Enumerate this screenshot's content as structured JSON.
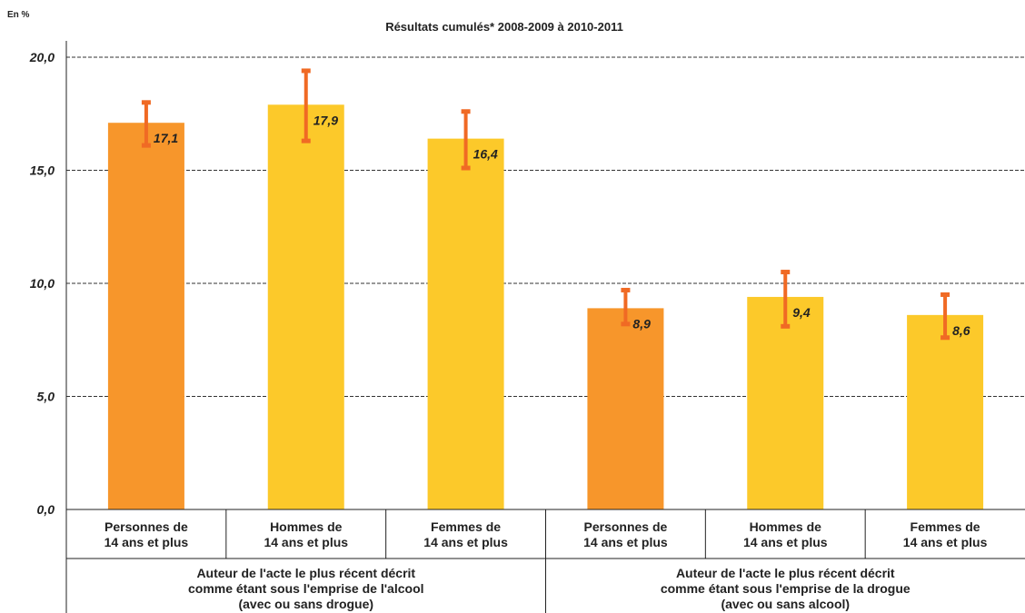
{
  "unit_label": "En %",
  "chart_data": {
    "type": "bar",
    "title": "Résultats cumulés* 2008-2009 à 2010-2011",
    "ylim": [
      0,
      20
    ],
    "yticks": [
      "0,0",
      "5,0",
      "10,0",
      "15,0",
      "20,0"
    ],
    "grid": true,
    "categories": [
      [
        "Personnes de",
        "14 ans et plus"
      ],
      [
        "Hommes de",
        "14 ans et plus"
      ],
      [
        "Femmes de",
        "14 ans et plus"
      ],
      [
        "Personnes de",
        "14 ans et plus"
      ],
      [
        "Hommes de",
        "14 ans et plus"
      ],
      [
        "Femmes de",
        "14 ans et plus"
      ]
    ],
    "values": [
      17.1,
      17.9,
      16.4,
      8.9,
      9.4,
      8.6
    ],
    "value_labels": [
      "17,1",
      "17,9",
      "16,4",
      "8,9",
      "9,4",
      "8,6"
    ],
    "error_low": [
      16.1,
      16.3,
      15.1,
      8.2,
      8.1,
      7.6
    ],
    "error_high": [
      18.0,
      19.4,
      17.6,
      9.7,
      10.5,
      9.5
    ],
    "bar_colors": [
      "#f7962b",
      "#fcc92a",
      "#fcc92a",
      "#f7962b",
      "#fcc92a",
      "#fcc92a"
    ],
    "error_color": "#f06a24",
    "groups": [
      [
        "Auteur de l'acte le plus récent décrit",
        "comme étant sous l'emprise de l'alcool",
        "(avec ou sans drogue)"
      ],
      [
        "Auteur de l'acte le plus récent décrit",
        "comme étant sous l'emprise de la drogue",
        "(avec ou sans alcool)"
      ]
    ]
  }
}
